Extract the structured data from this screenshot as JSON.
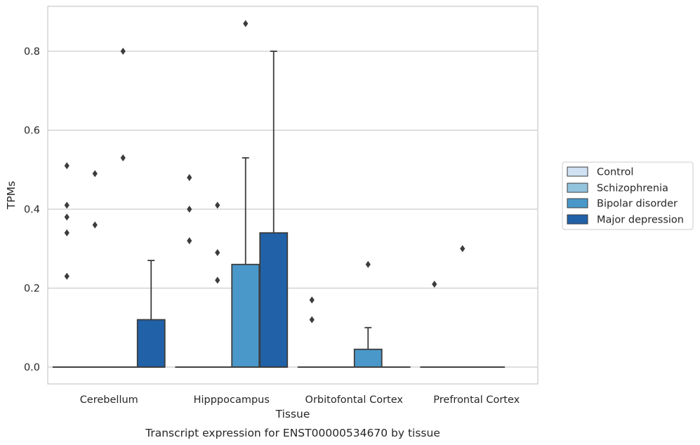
{
  "chart_data": {
    "type": "box",
    "title": "",
    "caption": "Transcript expression for ENST00000534670 by tissue",
    "xlabel": "Tissue",
    "ylabel": "TPMs",
    "ylim": [
      -0.04,
      0.915
    ],
    "yticks": [
      0.0,
      0.2,
      0.4,
      0.6,
      0.8
    ],
    "ytick_labels": [
      "0.0",
      "0.2",
      "0.4",
      "0.6",
      "0.8"
    ],
    "grid": "horizontal",
    "legend_position": "right",
    "categories": [
      "Cerebellum",
      "Hipppocampus",
      "Orbitofontal Cortex",
      "Prefrontal Cortex"
    ],
    "series": [
      {
        "name": "Control",
        "color": "#cfe1f2",
        "boxes": [
          {
            "q1": 0,
            "median": 0,
            "q3": 0,
            "whisker_low": 0,
            "whisker_high": 0,
            "outliers": [
              0.23,
              0.34,
              0.38,
              0.41,
              0.51
            ]
          },
          {
            "q1": 0,
            "median": 0,
            "q3": 0,
            "whisker_low": 0,
            "whisker_high": 0,
            "outliers": [
              0.32,
              0.4,
              0.48
            ]
          },
          {
            "q1": 0,
            "median": 0,
            "q3": 0,
            "whisker_low": 0,
            "whisker_high": 0,
            "outliers": [
              0.12,
              0.17
            ]
          },
          {
            "q1": 0,
            "median": 0,
            "q3": 0,
            "whisker_low": 0,
            "whisker_high": 0,
            "outliers": [
              0.21
            ]
          }
        ]
      },
      {
        "name": "Schizophrenia",
        "color": "#93c4de",
        "boxes": [
          {
            "q1": 0,
            "median": 0,
            "q3": 0,
            "whisker_low": 0,
            "whisker_high": 0,
            "outliers": [
              0.36,
              0.49
            ]
          },
          {
            "q1": 0,
            "median": 0,
            "q3": 0,
            "whisker_low": 0,
            "whisker_high": 0,
            "outliers": [
              0.22,
              0.29,
              0.41
            ]
          },
          {
            "q1": 0,
            "median": 0,
            "q3": 0,
            "whisker_low": 0,
            "whisker_high": 0,
            "outliers": []
          },
          {
            "q1": 0,
            "median": 0,
            "q3": 0,
            "whisker_low": 0,
            "whisker_high": 0,
            "outliers": [
              0.3
            ]
          }
        ]
      },
      {
        "name": "Bipolar disorder",
        "color": "#4a98c9",
        "boxes": [
          {
            "q1": 0,
            "median": 0,
            "q3": 0,
            "whisker_low": 0,
            "whisker_high": 0,
            "outliers": [
              0.53,
              0.8
            ]
          },
          {
            "q1": 0,
            "median": 0,
            "q3": 0.26,
            "whisker_low": 0,
            "whisker_high": 0.53,
            "outliers": [
              0.87
            ]
          },
          {
            "q1": 0,
            "median": 0,
            "q3": 0.045,
            "whisker_low": 0,
            "whisker_high": 0.1,
            "outliers": [
              0.26
            ]
          },
          {
            "q1": 0,
            "median": 0,
            "q3": 0,
            "whisker_low": 0,
            "whisker_high": 0,
            "outliers": []
          }
        ]
      },
      {
        "name": "Major depression",
        "color": "#2161a8",
        "boxes": [
          {
            "q1": 0,
            "median": 0,
            "q3": 0.12,
            "whisker_low": 0,
            "whisker_high": 0.27,
            "outliers": []
          },
          {
            "q1": 0,
            "median": 0,
            "q3": 0.34,
            "whisker_low": 0,
            "whisker_high": 0.8,
            "outliers": []
          },
          {
            "q1": 0,
            "median": 0,
            "q3": 0,
            "whisker_low": 0,
            "whisker_high": 0,
            "outliers": []
          },
          null
        ]
      }
    ]
  },
  "colors": {
    "grid": "#cccccc",
    "frame": "#cccccc",
    "edge": "#3c3c3c",
    "text": "#262626"
  }
}
